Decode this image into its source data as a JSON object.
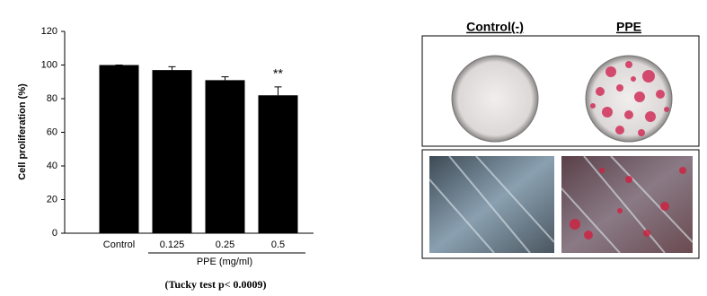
{
  "chart_data": {
    "type": "bar",
    "categories": [
      "Control",
      "0.125",
      "0.25",
      "0.5"
    ],
    "values": [
      100,
      97,
      91,
      82
    ],
    "errors": [
      0,
      2,
      2,
      5
    ],
    "value_annotations": [
      null,
      null,
      null,
      "**"
    ],
    "color": "#000000",
    "ylabel": "Cell proliferation (%)",
    "xlabel": "PPE (mg/ml)",
    "ylim": [
      0,
      120
    ],
    "yticks": [
      0,
      20,
      40,
      60,
      80,
      100,
      120
    ],
    "grid": false
  },
  "image_panels": {
    "labels": [
      "Control(-)",
      "PPE"
    ]
  },
  "footnote": "(Tucky test p< 0.0009)"
}
